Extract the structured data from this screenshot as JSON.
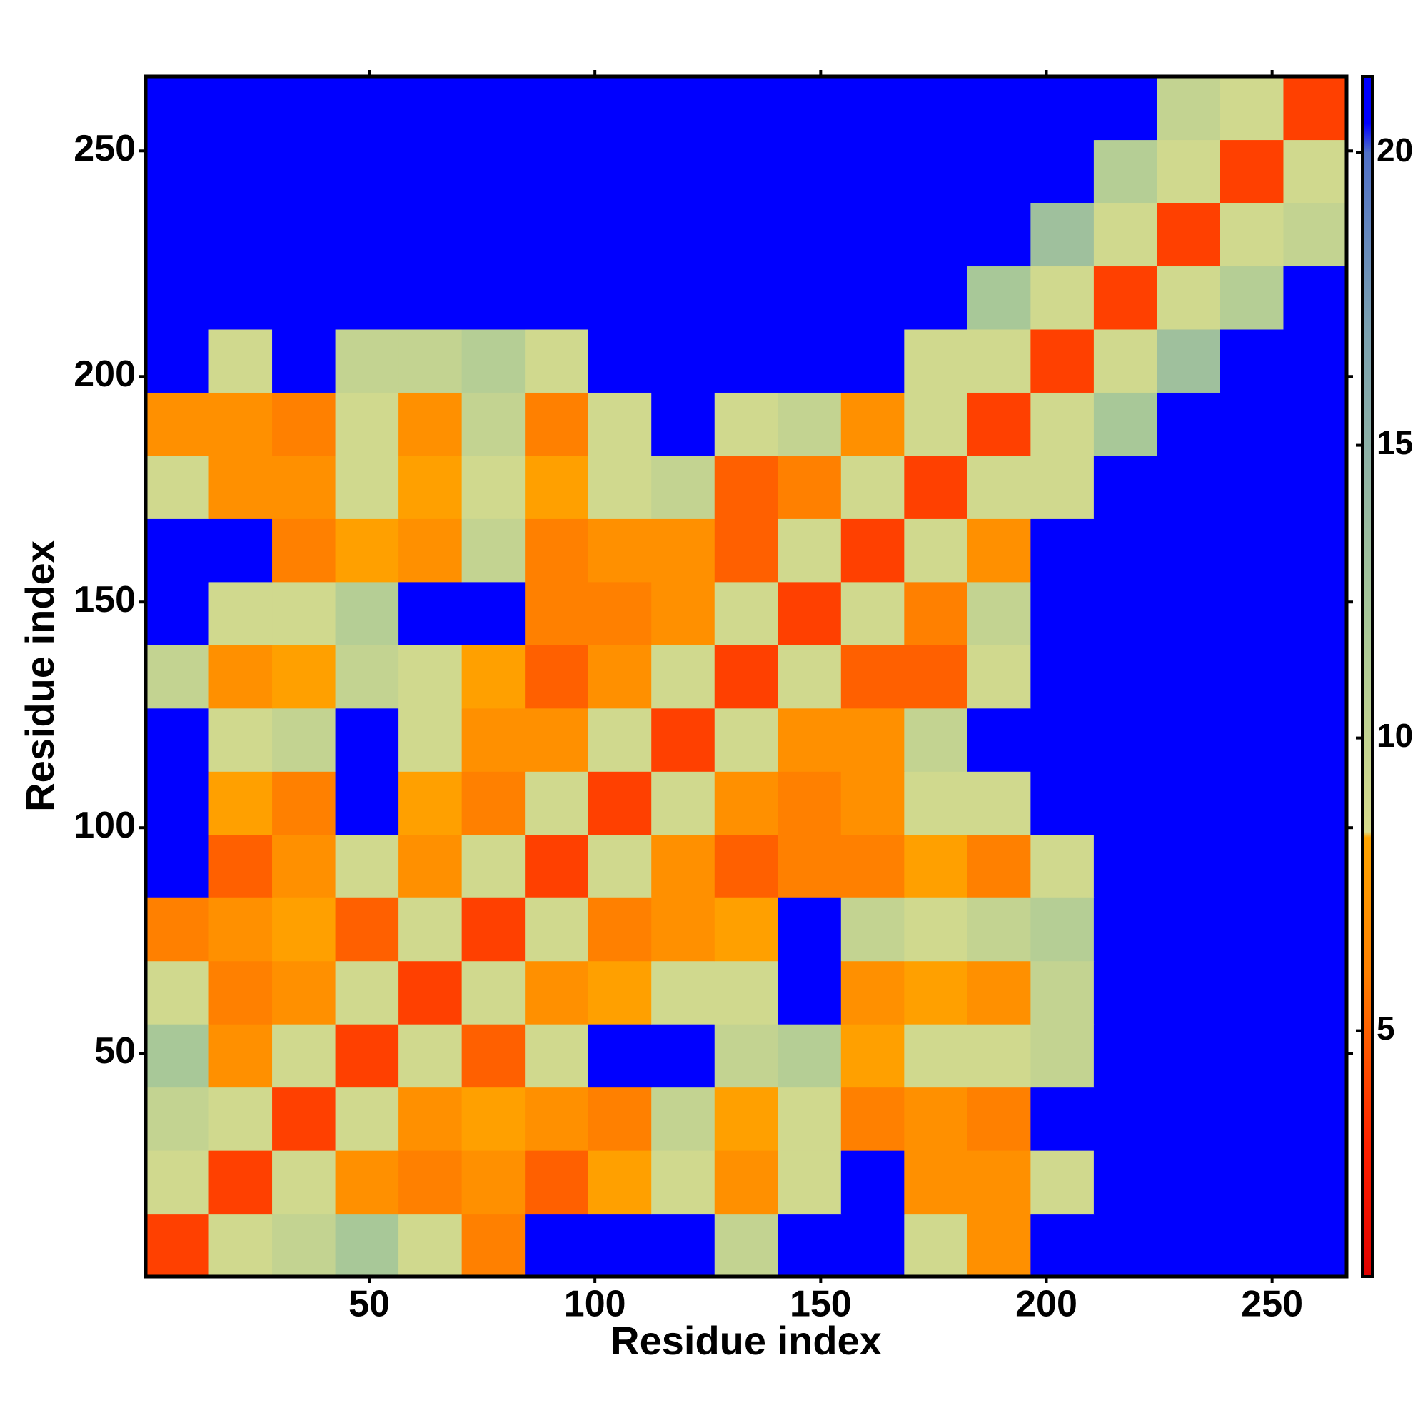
{
  "chart_data": {
    "type": "heatmap",
    "xlabel": "Residue index",
    "ylabel": "Residue index",
    "bins": [
      0.5,
      14.5,
      28.5,
      42.5,
      56.5,
      70.5,
      84.5,
      98.5,
      112.5,
      126.5,
      140.5,
      154.5,
      168.5,
      182.5,
      196.5,
      210.5,
      224.5,
      238.5,
      252.5,
      266.5
    ],
    "z": [
      [
        4,
        9,
        10,
        12,
        9,
        6,
        21,
        21,
        21,
        10,
        21,
        21,
        9,
        7,
        21,
        21,
        21,
        21,
        21
      ],
      [
        9,
        4,
        9,
        7,
        6,
        7,
        5,
        8,
        9,
        7,
        9,
        21,
        7,
        7,
        9,
        21,
        21,
        21,
        21
      ],
      [
        10,
        9,
        4,
        9,
        7,
        8,
        7,
        6,
        10,
        8,
        9,
        6,
        7,
        6,
        21,
        21,
        21,
        21,
        21
      ],
      [
        12,
        7,
        9,
        4,
        9,
        5,
        9,
        21,
        21,
        10,
        11,
        8,
        9,
        9,
        10,
        21,
        21,
        21,
        21
      ],
      [
        9,
        6,
        7,
        9,
        4,
        9,
        7,
        8,
        9,
        9,
        21,
        7,
        8,
        7,
        10,
        21,
        21,
        21,
        21
      ],
      [
        6,
        7,
        8,
        5,
        9,
        4,
        9,
        6,
        7,
        8,
        21,
        10,
        9,
        10,
        11,
        21,
        21,
        21,
        21
      ],
      [
        21,
        5,
        7,
        9,
        7,
        9,
        4,
        9,
        7,
        5,
        6,
        6,
        8,
        6,
        9,
        21,
        21,
        21,
        21
      ],
      [
        21,
        8,
        6,
        21,
        8,
        6,
        9,
        4,
        9,
        7,
        6,
        7,
        9,
        9,
        21,
        21,
        21,
        21,
        21
      ],
      [
        21,
        9,
        10,
        21,
        9,
        7,
        7,
        9,
        4,
        9,
        7,
        7,
        10,
        21,
        21,
        21,
        21,
        21,
        21
      ],
      [
        10,
        7,
        8,
        10,
        9,
        8,
        5,
        7,
        9,
        4,
        9,
        5,
        5,
        9,
        21,
        21,
        21,
        21,
        21
      ],
      [
        21,
        9,
        9,
        11,
        21,
        21,
        6,
        6,
        7,
        9,
        4,
        9,
        6,
        10,
        21,
        21,
        21,
        21,
        21
      ],
      [
        21,
        21,
        6,
        8,
        7,
        10,
        6,
        7,
        7,
        5,
        9,
        4,
        9,
        7,
        21,
        21,
        21,
        21,
        21
      ],
      [
        9,
        7,
        7,
        9,
        8,
        9,
        8,
        9,
        10,
        5,
        6,
        9,
        4,
        9,
        9,
        21,
        21,
        21,
        21
      ],
      [
        7,
        7,
        6,
        9,
        7,
        10,
        6,
        9,
        21,
        9,
        10,
        7,
        9,
        4,
        9,
        12,
        21,
        21,
        21
      ],
      [
        21,
        9,
        21,
        10,
        10,
        11,
        9,
        21,
        21,
        21,
        21,
        21,
        9,
        9,
        4,
        9,
        13,
        21,
        21
      ],
      [
        21,
        21,
        21,
        21,
        21,
        21,
        21,
        21,
        21,
        21,
        21,
        21,
        21,
        12,
        9,
        4,
        9,
        11,
        21
      ],
      [
        21,
        21,
        21,
        21,
        21,
        21,
        21,
        21,
        21,
        21,
        21,
        21,
        21,
        21,
        13,
        9,
        4,
        9,
        10
      ],
      [
        21,
        21,
        21,
        21,
        21,
        21,
        21,
        21,
        21,
        21,
        21,
        21,
        21,
        21,
        21,
        11,
        9,
        4,
        9
      ],
      [
        21,
        21,
        21,
        21,
        21,
        21,
        21,
        21,
        21,
        21,
        21,
        21,
        21,
        21,
        21,
        21,
        10,
        9,
        4
      ]
    ],
    "xlim": [
      0.5,
      266.5
    ],
    "ylim": [
      0.5,
      266.5
    ],
    "xticks": [
      50,
      100,
      150,
      200,
      250
    ],
    "yticks": [
      50,
      100,
      150,
      200,
      250
    ],
    "clim": [
      0.8,
      21.3
    ],
    "cticks": [
      5,
      10,
      15,
      20
    ],
    "colorscale": [
      [
        0.8,
        "#e00000"
      ],
      [
        3,
        "#ff2000"
      ],
      [
        6,
        "#ff8000"
      ],
      [
        8.3,
        "#ffa500"
      ],
      [
        8.4,
        "#d8dc8c"
      ],
      [
        12,
        "#a8c898"
      ],
      [
        17,
        "#7aa0b0"
      ],
      [
        20,
        "#5070c8"
      ],
      [
        20.5,
        "#0000ff"
      ],
      [
        21.3,
        "#0000ff"
      ]
    ]
  }
}
